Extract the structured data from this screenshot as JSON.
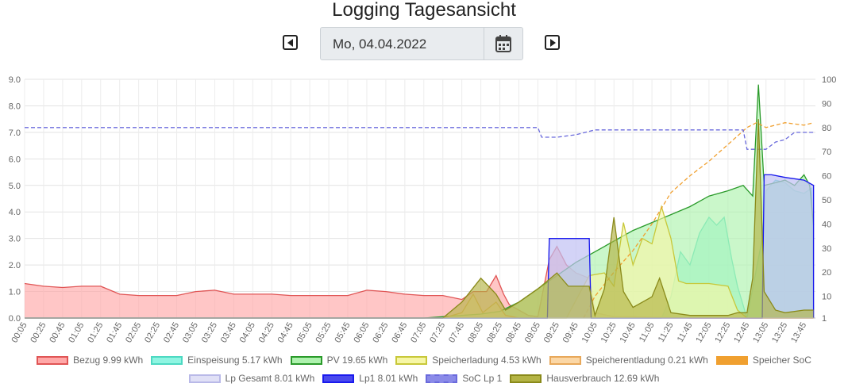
{
  "header": {
    "title": "Logging Tagesansicht",
    "date_value": "Mo, 04.04.2022"
  },
  "icons": {
    "prev": "caret-left-square-icon",
    "next": "caret-right-square-icon",
    "calendar": "calendar-icon"
  },
  "chart_data": {
    "type": "area",
    "x_ticks": [
      "00:05",
      "00:25",
      "00:45",
      "01:05",
      "01:25",
      "01:45",
      "02:05",
      "02:25",
      "02:45",
      "03:05",
      "03:25",
      "03:45",
      "04:05",
      "04:25",
      "04:45",
      "05:05",
      "05:25",
      "05:45",
      "06:05",
      "06:25",
      "06:45",
      "07:05",
      "07:25",
      "07:45",
      "08:05",
      "08:25",
      "08:45",
      "09:05",
      "09:25",
      "09:45",
      "10:05",
      "10:25",
      "10:45",
      "11:05",
      "11:25",
      "11:45",
      "12:05",
      "12:25",
      "12:45",
      "13:05",
      "13:25",
      "13:45"
    ],
    "y_left": {
      "ticks": [
        "0.0",
        "1.0",
        "2.0",
        "3.0",
        "4.0",
        "5.0",
        "6.0",
        "7.0",
        "8.0",
        "9.0"
      ],
      "range": [
        0,
        9
      ]
    },
    "y_right": {
      "ticks": [
        "1",
        "10",
        "20",
        "30",
        "40",
        "50",
        "60",
        "70",
        "80",
        "90",
        "100"
      ],
      "range": [
        1,
        100
      ]
    },
    "grid": true,
    "legend_position": "bottom",
    "series": [
      {
        "name": "Bezug 9.99 kWh",
        "color": "#e05555",
        "fill": "#ffa8a8",
        "axis": "left",
        "points": [
          [
            0,
            1.3
          ],
          [
            1,
            1.2
          ],
          [
            2,
            1.15
          ],
          [
            3,
            1.2
          ],
          [
            4,
            1.2
          ],
          [
            5,
            0.9
          ],
          [
            6,
            0.85
          ],
          [
            7,
            0.85
          ],
          [
            8,
            0.85
          ],
          [
            9,
            1.0
          ],
          [
            10,
            1.05
          ],
          [
            11,
            0.9
          ],
          [
            12,
            0.9
          ],
          [
            13,
            0.9
          ],
          [
            14,
            0.85
          ],
          [
            15,
            0.85
          ],
          [
            16,
            0.85
          ],
          [
            17,
            0.85
          ],
          [
            18,
            1.05
          ],
          [
            19,
            1.0
          ],
          [
            20,
            0.9
          ],
          [
            21,
            0.85
          ],
          [
            22,
            0.85
          ],
          [
            23,
            0.7
          ],
          [
            23.6,
            1.0
          ],
          [
            24.3,
            1.0
          ],
          [
            24.8,
            1.6
          ],
          [
            25.2,
            0.9
          ],
          [
            25.5,
            0.5
          ],
          [
            26,
            0.3
          ],
          [
            26.5,
            0.1
          ],
          [
            27,
            0.05
          ],
          [
            27.6,
            2.2
          ],
          [
            28,
            2.7
          ],
          [
            28.5,
            2.0
          ],
          [
            29,
            1.7
          ],
          [
            29.7,
            1.5
          ],
          [
            30,
            0.2
          ],
          [
            31,
            0.05
          ],
          [
            32,
            0.05
          ],
          [
            33,
            0.03
          ],
          [
            34,
            0.02
          ],
          [
            35,
            0
          ],
          [
            41.5,
            0
          ]
        ]
      },
      {
        "name": "Einspeisung 5.17 kWh",
        "color": "#4dd9c2",
        "fill": "#8ff5e2",
        "axis": "left",
        "points": [
          [
            0,
            0
          ],
          [
            33.5,
            0
          ],
          [
            34,
            0.8
          ],
          [
            34.5,
            2.5
          ],
          [
            35,
            2.0
          ],
          [
            35.5,
            3.2
          ],
          [
            36,
            3.8
          ],
          [
            36.4,
            3.5
          ],
          [
            36.8,
            3.8
          ],
          [
            37.2,
            2.2
          ],
          [
            37.5,
            1.2
          ],
          [
            38,
            0
          ],
          [
            38.8,
            3.0
          ],
          [
            39,
            4.8
          ],
          [
            39.5,
            5.2
          ],
          [
            40,
            5.1
          ],
          [
            40.5,
            4.8
          ],
          [
            41,
            4.7
          ],
          [
            41.4,
            4.9
          ],
          [
            41.5,
            0.3
          ]
        ]
      },
      {
        "name": "PV 19.65 kWh",
        "color": "#2a9a2a",
        "fill": "#aef2ae",
        "axis": "left",
        "points": [
          [
            0,
            0
          ],
          [
            21,
            0
          ],
          [
            22,
            0.05
          ],
          [
            23,
            0.1
          ],
          [
            24,
            0.15
          ],
          [
            25,
            0.25
          ],
          [
            26,
            0.6
          ],
          [
            27,
            1.1
          ],
          [
            28,
            1.6
          ],
          [
            29,
            2.1
          ],
          [
            30,
            2.5
          ],
          [
            31,
            2.9
          ],
          [
            32,
            3.3
          ],
          [
            33,
            3.6
          ],
          [
            34,
            3.9
          ],
          [
            35,
            4.2
          ],
          [
            36,
            4.6
          ],
          [
            37,
            4.8
          ],
          [
            37.8,
            5.0
          ],
          [
            38.3,
            4.6
          ],
          [
            38.6,
            8.8
          ],
          [
            38.9,
            5.0
          ],
          [
            39.5,
            5.1
          ],
          [
            40,
            5.2
          ],
          [
            40.5,
            5.0
          ],
          [
            41,
            5.4
          ],
          [
            41.3,
            5.0
          ],
          [
            41.5,
            3.5
          ]
        ]
      },
      {
        "name": "Speicherladung 4.53 kWh",
        "color": "#c8c83a",
        "fill": "#f6f6a6",
        "axis": "left",
        "points": [
          [
            0,
            0
          ],
          [
            28.5,
            0
          ],
          [
            29.7,
            1.6
          ],
          [
            30.5,
            1.7
          ],
          [
            31,
            1.2
          ],
          [
            31.5,
            3.6
          ],
          [
            32,
            2.0
          ],
          [
            32.5,
            3.0
          ],
          [
            33,
            2.8
          ],
          [
            33.5,
            4.2
          ],
          [
            34,
            3.0
          ],
          [
            34.4,
            1.4
          ],
          [
            34.8,
            1.3
          ],
          [
            35.5,
            1.3
          ],
          [
            36,
            1.3
          ],
          [
            37,
            1.2
          ],
          [
            37.5,
            0.3
          ],
          [
            38,
            0
          ],
          [
            41.5,
            0
          ]
        ]
      },
      {
        "name": "Speicherentladung 0.21 kWh",
        "color": "#e8a85a",
        "fill": "#fbd7a6",
        "axis": "left",
        "points": [
          [
            0,
            0
          ],
          [
            22,
            0
          ],
          [
            23,
            0.2
          ],
          [
            23.6,
            0.9
          ],
          [
            24.1,
            0.2
          ],
          [
            24.8,
            0.6
          ],
          [
            25.3,
            0.1
          ],
          [
            26,
            0
          ],
          [
            41.5,
            0
          ]
        ]
      },
      {
        "name": "Speicher SoC",
        "color": "#f0a030",
        "fill": "none",
        "axis": "right",
        "dashed": true,
        "points": [
          [
            29.4,
            1
          ],
          [
            30,
            10
          ],
          [
            31,
            20
          ],
          [
            32,
            29
          ],
          [
            33,
            40
          ],
          [
            34,
            53
          ],
          [
            35,
            60
          ],
          [
            36,
            66
          ],
          [
            37,
            73
          ],
          [
            38,
            80
          ],
          [
            38.5,
            82
          ],
          [
            39,
            80
          ],
          [
            40,
            82
          ],
          [
            41,
            81
          ],
          [
            41.5,
            82
          ]
        ]
      },
      {
        "name": "Lp Gesamt 8.01 kWh",
        "color": "#b9b9e8",
        "fill": "#e0e0f6",
        "axis": "left",
        "points": [
          [
            0,
            0
          ],
          [
            27.5,
            0
          ],
          [
            27.6,
            3.0
          ],
          [
            29.7,
            3.0
          ],
          [
            29.8,
            0
          ],
          [
            38.8,
            0
          ],
          [
            38.9,
            5.4
          ],
          [
            39.3,
            5.4
          ],
          [
            40,
            5.3
          ],
          [
            41,
            5.2
          ],
          [
            41.5,
            5.0
          ],
          [
            41.5,
            0
          ]
        ]
      },
      {
        "name": "Lp1 8.01 kWh",
        "color": "#1a1aee",
        "fill": "#4a4aee",
        "axis": "left",
        "fill_opacity": 0.15,
        "points": [
          [
            0,
            0
          ],
          [
            27.5,
            0
          ],
          [
            27.6,
            3.0
          ],
          [
            29.7,
            3.0
          ],
          [
            29.8,
            0
          ],
          [
            38.8,
            0
          ],
          [
            38.9,
            5.4
          ],
          [
            39.3,
            5.4
          ],
          [
            40,
            5.3
          ],
          [
            41,
            5.2
          ],
          [
            41.5,
            5.0
          ],
          [
            41.5,
            0
          ]
        ]
      },
      {
        "name": "SoC Lp 1",
        "color": "#6a6adc",
        "fill": "none",
        "axis": "right",
        "dashed": true,
        "points": [
          [
            0,
            80
          ],
          [
            27,
            80
          ],
          [
            27.2,
            76
          ],
          [
            28,
            76
          ],
          [
            29,
            77
          ],
          [
            30,
            79
          ],
          [
            34,
            79
          ],
          [
            37.8,
            79
          ],
          [
            38,
            71
          ],
          [
            39,
            71
          ],
          [
            39.5,
            74
          ],
          [
            40,
            75
          ],
          [
            40.5,
            78
          ],
          [
            41.5,
            78
          ]
        ]
      },
      {
        "name": "Hausverbrauch 12.69 kWh",
        "color": "#8a8a1a",
        "fill": "#b4b445",
        "axis": "left",
        "points": [
          [
            0,
            0
          ],
          [
            22,
            0
          ],
          [
            23,
            0.6
          ],
          [
            24,
            1.5
          ],
          [
            24.8,
            0.9
          ],
          [
            25.3,
            0.3
          ],
          [
            26,
            0.6
          ],
          [
            27,
            1.1
          ],
          [
            28,
            1.7
          ],
          [
            28.6,
            1.2
          ],
          [
            29.7,
            1.2
          ],
          [
            30,
            0.1
          ],
          [
            30.5,
            1.1
          ],
          [
            31,
            3.8
          ],
          [
            31.5,
            1.0
          ],
          [
            32,
            0.4
          ],
          [
            33,
            0.8
          ],
          [
            33.4,
            1.5
          ],
          [
            34,
            0.2
          ],
          [
            35,
            0.1
          ],
          [
            36,
            0.1
          ],
          [
            37,
            0.1
          ],
          [
            37.5,
            0.2
          ],
          [
            38,
            0.2
          ],
          [
            38.3,
            1.5
          ],
          [
            38.6,
            7.5
          ],
          [
            38.9,
            1.0
          ],
          [
            39.5,
            0.3
          ],
          [
            40,
            0.2
          ],
          [
            41,
            0.3
          ],
          [
            41.5,
            0.3
          ]
        ]
      }
    ]
  }
}
